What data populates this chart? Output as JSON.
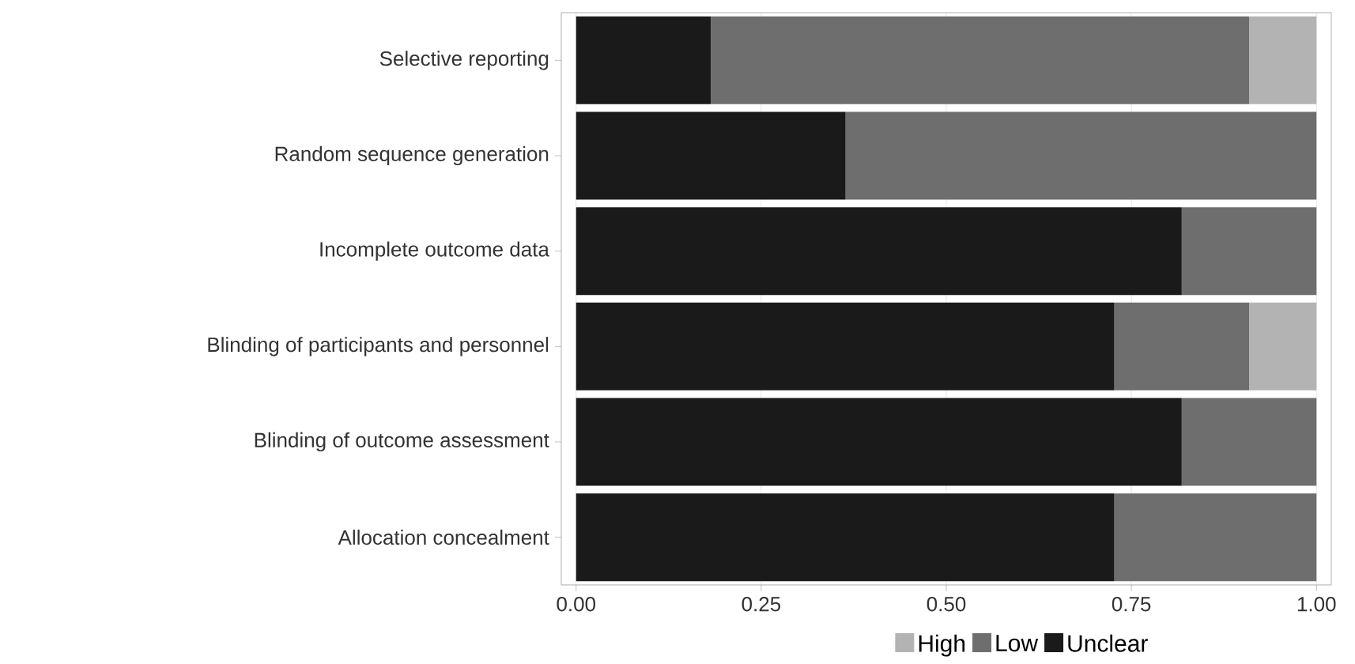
{
  "chart_data": {
    "type": "bar",
    "orientation": "horizontal",
    "stacked": true,
    "categories": [
      "Selective reporting",
      "Random sequence generation",
      "Incomplete outcome data",
      "Blinding of participants and personnel",
      "Blinding of outcome assessment",
      "Allocation concealment"
    ],
    "series": [
      {
        "name": "Unclear",
        "color": "#1a1a1a",
        "values": [
          0.182,
          0.364,
          0.818,
          0.727,
          0.818,
          0.727
        ]
      },
      {
        "name": "Low",
        "color": "#6e6e6e",
        "values": [
          0.727,
          0.636,
          0.182,
          0.182,
          0.182,
          0.273
        ]
      },
      {
        "name": "High",
        "color": "#b3b3b3",
        "values": [
          0.091,
          0,
          0,
          0.091,
          0,
          0
        ]
      }
    ],
    "xlim": [
      -0.02,
      1.02
    ],
    "xticks": [
      {
        "value": 0,
        "label": "0.00"
      },
      {
        "value": 0.25,
        "label": "0.25"
      },
      {
        "value": 0.5,
        "label": "0.50"
      },
      {
        "value": 0.75,
        "label": "0.75"
      },
      {
        "value": 1,
        "label": "1.00"
      }
    ],
    "grid": "x",
    "legend": "bottom"
  }
}
